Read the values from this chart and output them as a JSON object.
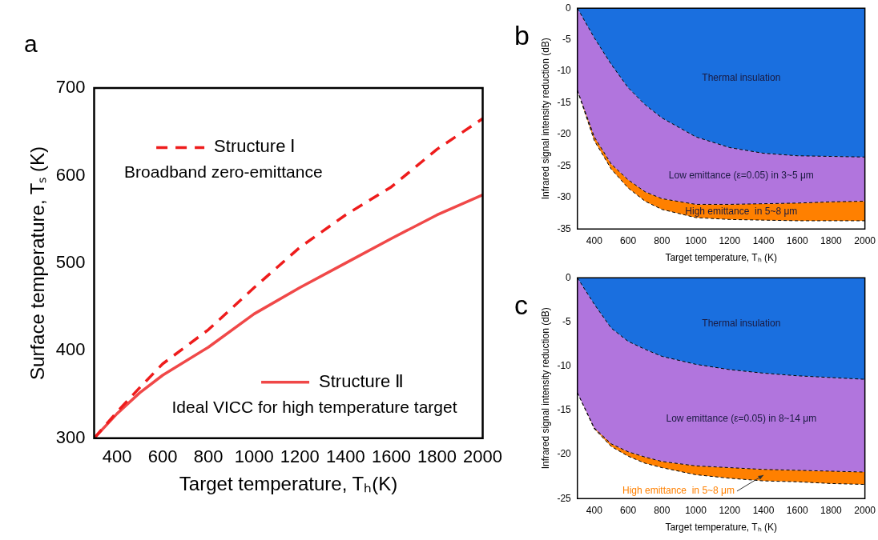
{
  "chart_data": [
    {
      "type": "line",
      "title": "a",
      "xlabel": "Target temperature, Tₕ(K)",
      "ylabel": "Surface temperature, Tₛ (K)",
      "xlim": [
        300,
        2000
      ],
      "xticks": [
        400,
        600,
        800,
        1000,
        1200,
        1400,
        1600,
        1800,
        2000
      ],
      "ylim": [
        300,
        700
      ],
      "yticks": [
        300,
        400,
        500,
        600,
        700
      ],
      "legend": "left",
      "grid": false,
      "series": [
        {
          "name": "Structure Ⅰ",
          "color": "#ee1c1c",
          "line_style": "dashed",
          "x": [
            300,
            400,
            500,
            600,
            800,
            1000,
            1200,
            1400,
            1600,
            1800,
            2000
          ],
          "values": [
            300,
            330,
            358,
            385,
            424,
            472,
            518,
            555,
            587,
            630,
            665
          ]
        },
        {
          "name": "Structure Ⅱ",
          "color": "#f04848",
          "line_style": "solid",
          "x": [
            300,
            400,
            500,
            600,
            800,
            1000,
            1200,
            1400,
            1600,
            1800,
            2000
          ],
          "values": [
            300,
            328,
            352,
            372,
            404,
            442,
            472,
            500,
            528,
            555,
            578
          ]
        }
      ],
      "annotations": [
        "Broadband zero-emittance",
        "Ideal VICC for high temperature target"
      ]
    },
    {
      "type": "area",
      "title": "b",
      "xlabel": "Target temperature, Tₕ (K)",
      "ylabel": "Infrared signal intensity reduction (dB)",
      "xlim": [
        300,
        2000
      ],
      "xticks": [
        400,
        600,
        800,
        1000,
        1200,
        1400,
        1600,
        1800,
        2000
      ],
      "ylim": [
        -35,
        0
      ],
      "yticks": [
        -35,
        -30,
        -25,
        -20,
        -15,
        -10,
        -5,
        0
      ],
      "grid": false,
      "line_style": "dashed",
      "x": [
        300,
        400,
        500,
        600,
        700,
        800,
        1000,
        1200,
        1400,
        1600,
        1800,
        2000
      ],
      "series": [
        {
          "color": "#1a6fdf",
          "values": [
            0,
            -4.7,
            -8.9,
            -12.6,
            -15.3,
            -17.4,
            -20.4,
            -22.1,
            -23.0,
            -23.4,
            -23.5,
            -23.6
          ]
        },
        {
          "color": "#b175dd",
          "values": [
            -13,
            -20.4,
            -24.7,
            -27.2,
            -29.1,
            -30.2,
            -31.1,
            -31.1,
            -31.0,
            -30.9,
            -30.7,
            -30.6
          ]
        },
        {
          "color": "#ff8000",
          "values": [
            -13,
            -21,
            -25.5,
            -28.5,
            -30.6,
            -31.9,
            -33.2,
            -33.5,
            -33.6,
            -33.7,
            -33.7,
            -33.7
          ]
        }
      ],
      "annotations": [
        "Thermal insulation",
        "Low emittance (ε=0.05) in 3~5 μm",
        "High emittance  in 5~8 μm"
      ]
    },
    {
      "type": "area",
      "title": "c",
      "xlabel": "Target temperature, Tₕ (K)",
      "ylabel": "Infrared signal intensity reduction (dB)",
      "xlim": [
        300,
        2000
      ],
      "xticks": [
        400,
        600,
        800,
        1000,
        1200,
        1400,
        1600,
        1800,
        2000
      ],
      "ylim": [
        -25,
        0
      ],
      "yticks": [
        -25,
        -20,
        -15,
        -10,
        -5,
        0
      ],
      "grid": false,
      "line_style": "dashed",
      "x": [
        300,
        400,
        500,
        600,
        700,
        800,
        1000,
        1200,
        1400,
        1600,
        1800,
        2000
      ],
      "series": [
        {
          "color": "#1a6fdf",
          "values": [
            0,
            -3.0,
            -5.7,
            -7.2,
            -8.1,
            -8.9,
            -9.8,
            -10.4,
            -10.8,
            -11.1,
            -11.3,
            -11.5
          ]
        },
        {
          "color": "#b175dd",
          "values": [
            -13,
            -17,
            -18.8,
            -19.7,
            -20.3,
            -20.8,
            -21.3,
            -21.5,
            -21.7,
            -21.8,
            -21.9,
            -22
          ]
        },
        {
          "color": "#ff8000",
          "values": [
            -13,
            -17.1,
            -19.1,
            -20.2,
            -21,
            -21.5,
            -22.3,
            -22.7,
            -23,
            -23.1,
            -23.3,
            -23.4
          ]
        }
      ],
      "annotations": [
        "Thermal insulation",
        "Low emittance (ε=0.05) in 8~14 μm",
        "High emittance  in 5~8 μm"
      ]
    }
  ]
}
